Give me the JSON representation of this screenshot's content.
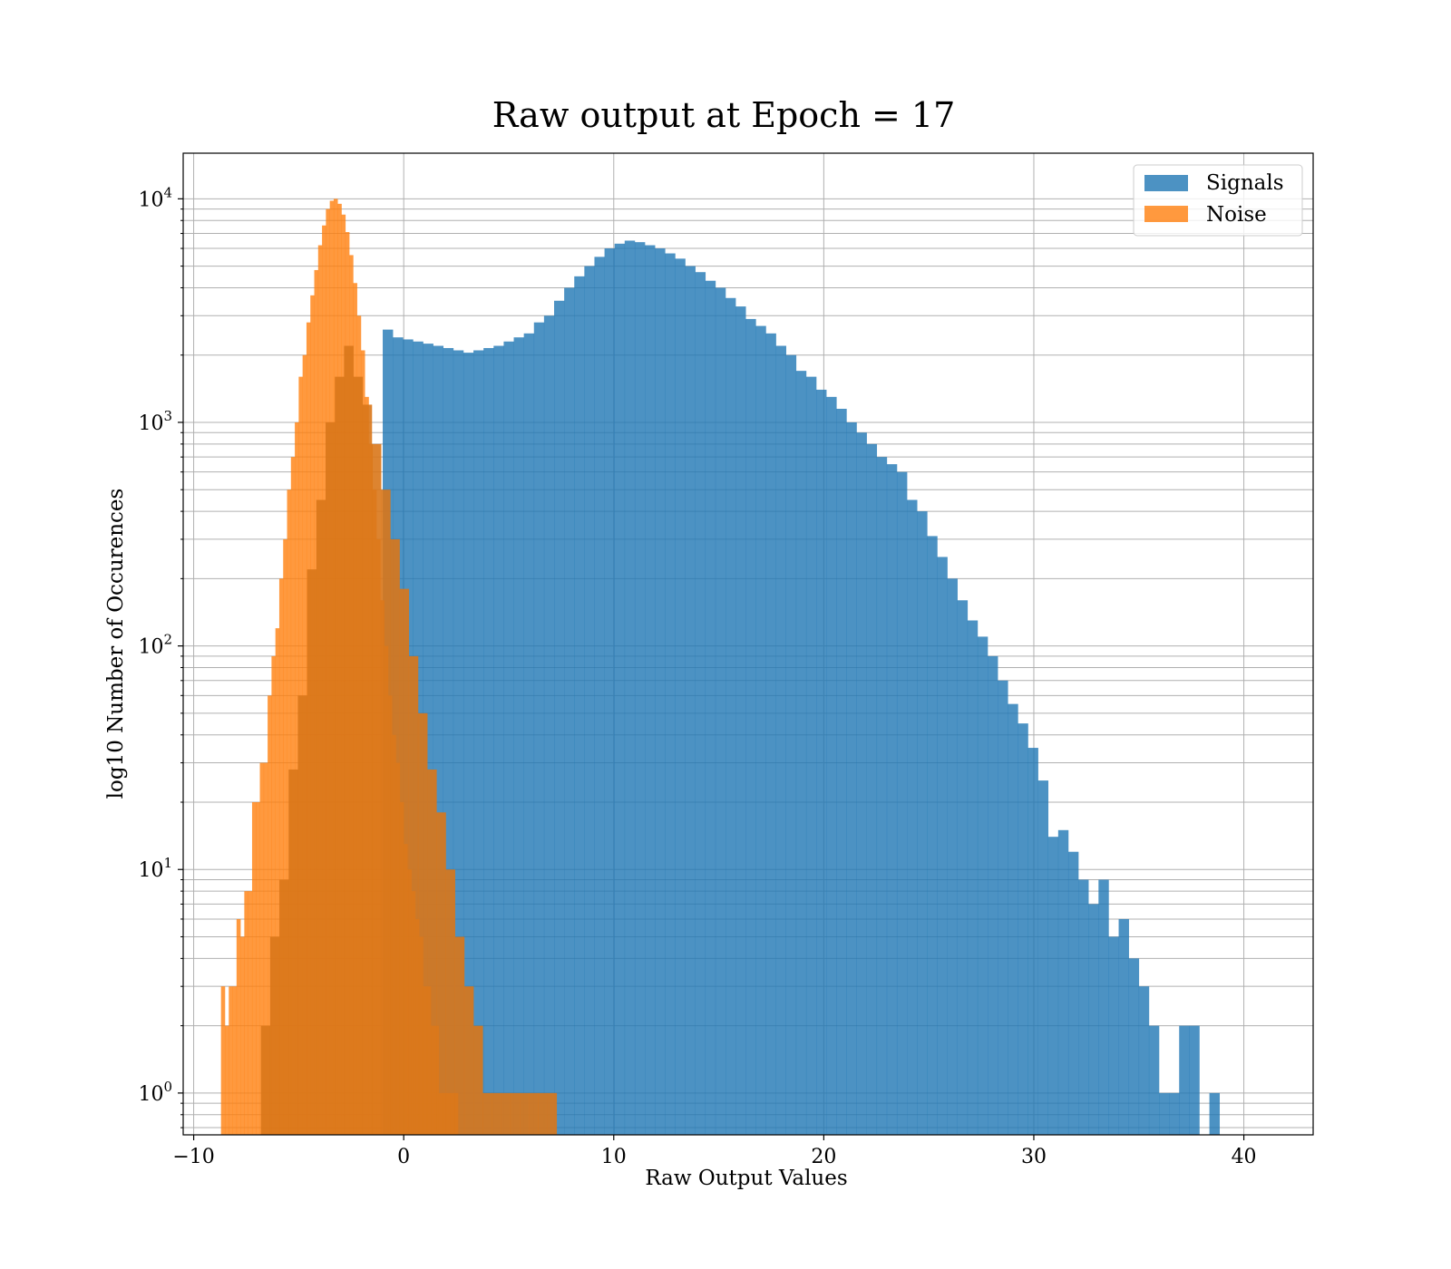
{
  "chart_data": {
    "type": "histogram",
    "title": "Raw output at Epoch = 17",
    "xlabel": "Raw Output Values",
    "ylabel": "log10 Number of Occurences",
    "xlim": [
      -10.5,
      43.3
    ],
    "ylim": [
      0.65,
      16000
    ],
    "yscale": "log",
    "grid": true,
    "legend_position": "top-right",
    "xticks": [
      {
        "value": -10,
        "label": "−10"
      },
      {
        "value": 0,
        "label": "0"
      },
      {
        "value": 10,
        "label": "10"
      },
      {
        "value": 20,
        "label": "20"
      },
      {
        "value": 30,
        "label": "30"
      },
      {
        "value": 40,
        "label": "40"
      }
    ],
    "yticks": [
      {
        "value": 1,
        "base": "10",
        "exp": "0"
      },
      {
        "value": 10,
        "base": "10",
        "exp": "1"
      },
      {
        "value": 100,
        "base": "10",
        "exp": "2"
      },
      {
        "value": 1000,
        "base": "10",
        "exp": "3"
      },
      {
        "value": 10000,
        "base": "10",
        "exp": "4"
      }
    ],
    "series": [
      {
        "name": "Signals",
        "color": "#1f77b4",
        "opacity": 0.8,
        "bin_start": -1.0,
        "bin_width": 0.48,
        "counts": [
          2600,
          2400,
          2350,
          2300,
          2250,
          2200,
          2150,
          2100,
          2050,
          2100,
          2150,
          2200,
          2300,
          2400,
          2500,
          2800,
          3000,
          3500,
          4000,
          4500,
          5000,
          5500,
          6000,
          6300,
          6500,
          6400,
          6200,
          6000,
          5700,
          5400,
          5000,
          4700,
          4300,
          4000,
          3600,
          3300,
          2900,
          2700,
          2500,
          2200,
          2000,
          1700,
          1600,
          1400,
          1300,
          1150,
          1000,
          900,
          800,
          700,
          650,
          600,
          450,
          400,
          310,
          250,
          200,
          160,
          130,
          110,
          90,
          70,
          55,
          45,
          35,
          25,
          14,
          15,
          12,
          9,
          7,
          9,
          5,
          6,
          4,
          3,
          2,
          1,
          1,
          2,
          2,
          0,
          1
        ]
      },
      {
        "name": "Noise",
        "color": "#ff7f0e",
        "opacity": 0.8,
        "bin_start": -8.7,
        "bin_width": 0.185,
        "counts": [
          3,
          2,
          3,
          3,
          6,
          5,
          8,
          8,
          20,
          20,
          30,
          30,
          60,
          90,
          120,
          200,
          300,
          500,
          700,
          1000,
          1600,
          2000,
          2800,
          3700,
          4800,
          6200,
          7600,
          9000,
          9800,
          10000,
          9500,
          8500,
          7100,
          5600,
          4200,
          3000,
          2100,
          1300,
          800,
          500,
          300,
          160,
          100,
          60,
          40,
          30,
          20,
          13,
          10,
          8,
          6,
          5,
          3,
          3,
          2,
          2,
          1,
          1,
          1,
          1,
          1
        ]
      },
      {
        "name": "",
        "color": "#d9771a",
        "opacity": 0.9,
        "bin_start": -6.8,
        "bin_width": 0.44,
        "counts": [
          2,
          5,
          9,
          28,
          60,
          220,
          450,
          1000,
          1600,
          2200,
          1600,
          1200,
          800,
          500,
          300,
          180,
          90,
          50,
          28,
          18,
          10,
          5,
          3,
          2,
          1,
          1,
          1,
          1,
          1,
          1,
          1,
          1
        ]
      }
    ]
  },
  "legend": {
    "items": [
      {
        "label": "Signals",
        "color": "#1f77b4"
      },
      {
        "label": "Noise",
        "color": "#ff7f0e"
      }
    ]
  }
}
